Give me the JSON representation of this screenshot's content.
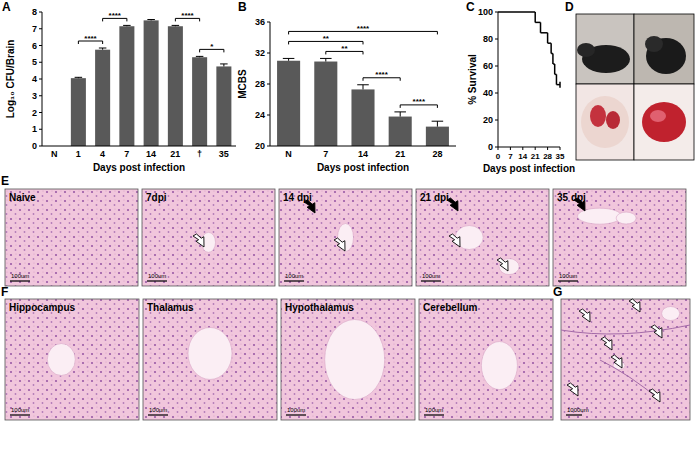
{
  "chart_data": [
    {
      "type": "bar",
      "x_label": "Days post infection",
      "y_label": "Log₁₀ CFU/Brain",
      "categories": [
        "N",
        "1",
        "4",
        "7",
        "14",
        "21",
        "†",
        "35"
      ],
      "values": [
        null,
        4.05,
        5.75,
        7.15,
        7.5,
        7.15,
        5.3,
        4.75
      ],
      "errors": [
        null,
        0.05,
        0.1,
        0.05,
        0.05,
        0.05,
        0.05,
        0.15
      ],
      "color": "#595959",
      "ylim": [
        0,
        8
      ],
      "yticks": [
        0,
        1,
        2,
        3,
        4,
        5,
        6,
        7,
        8
      ],
      "significance": [
        {
          "from": "1",
          "to": "4",
          "label": "****"
        },
        {
          "from": "4",
          "to": "7",
          "label": "****"
        },
        {
          "from": "21",
          "to": "†",
          "label": "****"
        },
        {
          "from": "†",
          "to": "35",
          "label": "*"
        }
      ]
    },
    {
      "type": "bar",
      "x_label": "Days post infection",
      "y_label": "MCBS",
      "categories": [
        "N",
        "7",
        "14",
        "21",
        "28"
      ],
      "values": [
        31.0,
        30.9,
        27.3,
        23.8,
        22.5
      ],
      "errors": [
        0.3,
        0.4,
        0.6,
        0.6,
        0.7
      ],
      "color": "#595959",
      "ylim": [
        20,
        36
      ],
      "yticks": [
        20,
        24,
        28,
        32,
        36
      ],
      "significance": [
        {
          "from": "7",
          "to": "14",
          "label": "**"
        },
        {
          "from": "14",
          "to": "21",
          "label": "****"
        },
        {
          "from": "21",
          "to": "28",
          "label": "****"
        },
        {
          "from": "N",
          "to": "14",
          "label": "**"
        },
        {
          "from": "N",
          "to": "28",
          "label": "****"
        }
      ]
    },
    {
      "type": "line",
      "line_style": "step",
      "x_label": "Days post infection",
      "y_label": "% Survival",
      "x": [
        0,
        21,
        24,
        28,
        30,
        31,
        32,
        33,
        35
      ],
      "values": [
        100,
        92.3,
        84.6,
        76.9,
        69.2,
        61.5,
        53.8,
        46.2,
        46.2
      ],
      "color": "#000000",
      "xlim": [
        0,
        35
      ],
      "xticks": [
        0,
        7,
        14,
        21,
        28,
        35
      ],
      "ylim": [
        0,
        100
      ],
      "yticks": [
        0,
        20,
        40,
        60,
        80,
        100
      ]
    }
  ],
  "panel_labels": [
    "A",
    "B",
    "C",
    "D",
    "E",
    "F",
    "G"
  ],
  "panel_e": {
    "titles": [
      "Naive",
      "7dpi",
      "14 dpi",
      "21 dpi",
      "35 dpi"
    ],
    "scale_bar": "100um"
  },
  "panel_f": {
    "titles": [
      "Hippocampus",
      "Thalamus",
      "Hypothalamus",
      "Cerebellum"
    ],
    "scale_bar": "100um"
  },
  "panel_g": {
    "scale_bar": "1000um"
  }
}
